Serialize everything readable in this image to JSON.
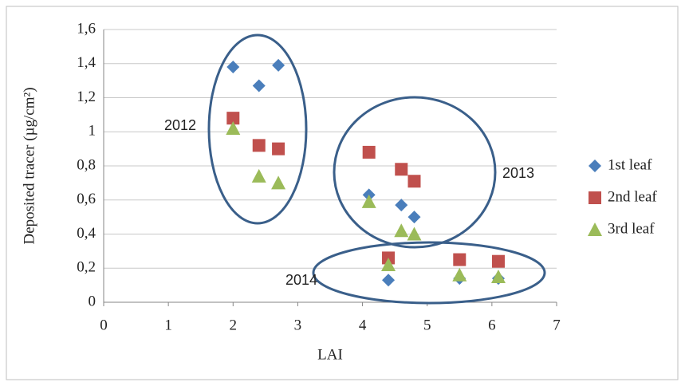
{
  "chart_data": {
    "type": "scatter",
    "x_label": "LAI",
    "y_label": "Deposited tracer (µg/cm²)",
    "xlim": [
      0,
      7
    ],
    "xticks": [
      0,
      1,
      2,
      3,
      4,
      5,
      6,
      7
    ],
    "ylim": [
      0,
      1.6
    ],
    "yticks": [
      0,
      {
        "value": 0.2,
        "label": "0,2"
      },
      {
        "value": 0.4,
        "label": "0,4"
      },
      {
        "value": 0.6,
        "label": "0,6"
      },
      {
        "value": 0.8,
        "label": "0,8"
      },
      1,
      {
        "value": 1.2,
        "label": "1,2"
      },
      {
        "value": 1.4,
        "label": "1,4"
      },
      {
        "value": 1.6,
        "label": "1,6"
      }
    ],
    "grid": true,
    "legend": "right",
    "annotations": [
      "2012",
      "2013",
      "2014"
    ],
    "series": [
      {
        "name": "1st leaf",
        "color": "#4a7ebb",
        "marker": "diamond",
        "x": [
          2,
          2.4,
          2.7,
          4.1,
          4.6,
          4.8,
          4.4,
          5.5,
          6.1
        ],
        "values": [
          1.38,
          1.27,
          1.39,
          0.63,
          0.57,
          0.5,
          0.13,
          0.14,
          0.14
        ]
      },
      {
        "name": "2nd leaf",
        "color": "#c0504d",
        "marker": "square",
        "x": [
          2,
          2.4,
          2.7,
          4.1,
          4.6,
          4.8,
          4.4,
          5.5,
          6.1
        ],
        "values": [
          1.08,
          0.92,
          0.9,
          0.88,
          0.78,
          0.71,
          0.26,
          0.25,
          0.24
        ]
      },
      {
        "name": "3rd leaf",
        "color": "#9bbb59",
        "marker": "triangle",
        "x": [
          2,
          2.4,
          2.7,
          4.1,
          4.6,
          4.8,
          4.4,
          5.5,
          6.1
        ],
        "values": [
          1.02,
          0.74,
          0.7,
          0.59,
          0.42,
          0.4,
          0.22,
          0.16,
          0.15
        ]
      }
    ]
  }
}
